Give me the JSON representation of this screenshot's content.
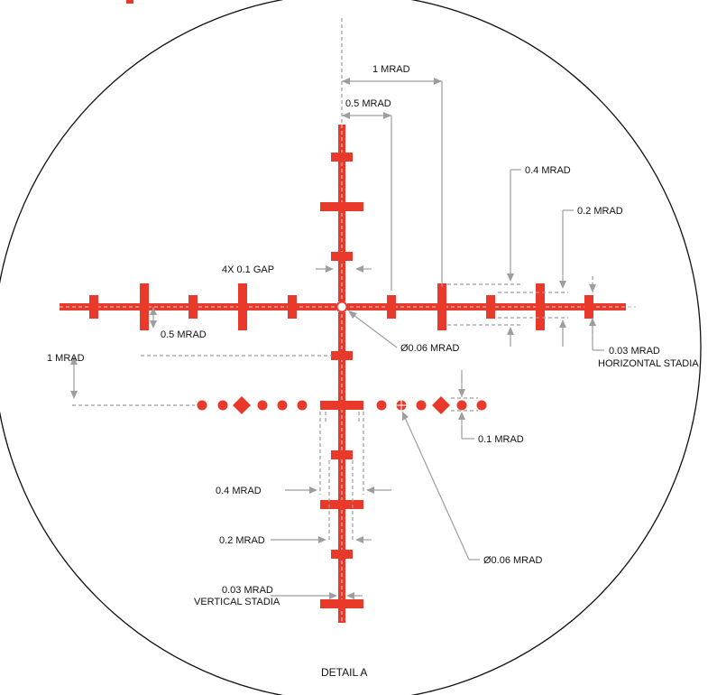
{
  "diagram": {
    "reticle_color": "#e8392b",
    "annotation_color": "#9e9e9e",
    "labels": {
      "one_mrad_top": "1 MRAD",
      "half_mrad_top": "0.5 MRAD",
      "point_four_mrad_right": "0.4 MRAD",
      "point_two_mrad_right": "0.2 MRAD",
      "gap": "4X 0.1 GAP",
      "half_mrad_left": "0.5 MRAD",
      "one_mrad_left": "1 MRAD",
      "center_dot": "Ø0.06 MRAD",
      "h_stadia_1": "0.03 MRAD",
      "h_stadia_2": "HORIZONTAL STADIA",
      "point_one_mrad": "0.1 MRAD",
      "point_four_mrad_bottom": "0.4 MRAD",
      "point_two_mrad_bottom": "0.2 MRAD",
      "lower_dot": "Ø0.06 MRAD",
      "v_stadia_1": "0.03 MRAD",
      "v_stadia_2": "VERTICAL STADIA",
      "detail": "DETAIL A"
    }
  }
}
